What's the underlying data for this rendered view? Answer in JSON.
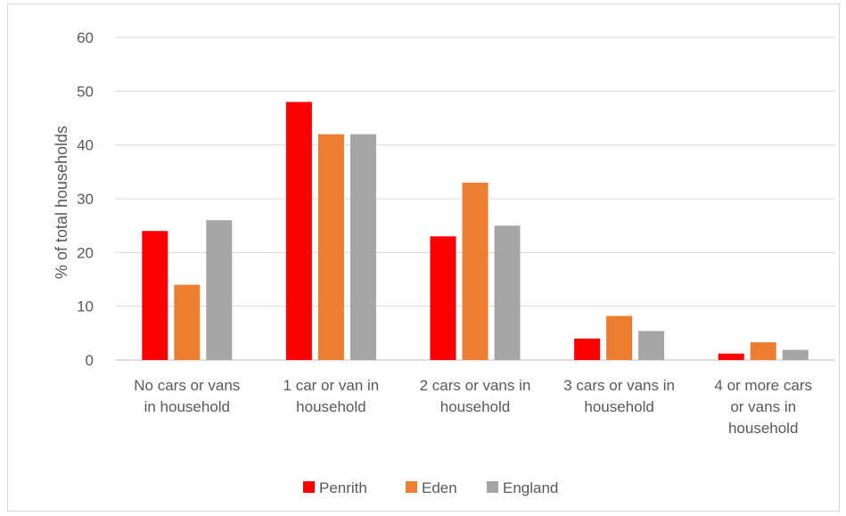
{
  "chart_data": {
    "type": "bar",
    "title": "",
    "xlabel": "",
    "ylabel": "% of total households",
    "ylim": [
      0,
      60
    ],
    "yticks": [
      0,
      10,
      20,
      30,
      40,
      50,
      60
    ],
    "grid": true,
    "legend_position": "bottom",
    "categories": [
      [
        "No cars or vans",
        "in household"
      ],
      [
        "1 car or van in",
        "household"
      ],
      [
        "2 cars or vans in",
        "household"
      ],
      [
        "3 cars or vans in",
        "household"
      ],
      [
        "4 or more cars",
        "or vans in",
        "household"
      ]
    ],
    "series": [
      {
        "name": "Penrith",
        "color": "#ff0000",
        "values": [
          24,
          48,
          23,
          4,
          1.2
        ]
      },
      {
        "name": "Eden",
        "color": "#ed7d31",
        "values": [
          14,
          42,
          33,
          8.2,
          3.3
        ]
      },
      {
        "name": "England",
        "color": "#a5a5a5",
        "values": [
          26,
          42,
          25,
          5.4,
          1.9
        ]
      }
    ]
  }
}
